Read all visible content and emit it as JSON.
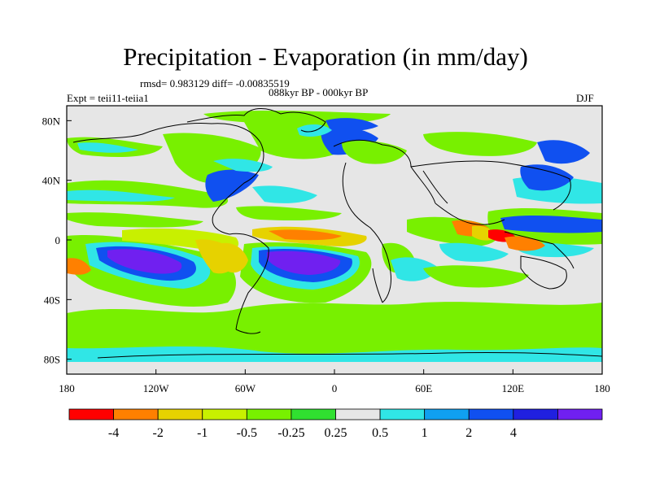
{
  "title": "Precipitation - Evaporation (in mm/day)",
  "stats": "rmsd= 0.983129 diff= -0.00835519",
  "experiment": "Expt = teii11-teiia1",
  "period": "088kyr BP - 000kyr BP",
  "season": "DJF",
  "axes": {
    "x_ticks": [
      "180",
      "120W",
      "60W",
      "0",
      "60E",
      "120E",
      "180"
    ],
    "x_values": [
      -180,
      -120,
      -60,
      0,
      60,
      120,
      180
    ],
    "y_ticks": [
      "80N",
      "40N",
      "0",
      "40S",
      "80S"
    ],
    "y_values": [
      80,
      40,
      0,
      -40,
      -80
    ],
    "xlim": [
      -180,
      180
    ],
    "ylim": [
      -90,
      90
    ]
  },
  "colorbar": {
    "colors": [
      "#ff0000",
      "#ff8000",
      "#e6d200",
      "#c8f000",
      "#78f000",
      "#30e030",
      "#e6e6e6",
      "#30e6e6",
      "#10a0f0",
      "#1050f0",
      "#2020e0",
      "#7020f0"
    ],
    "labels": [
      "-4",
      "-2",
      "-1",
      "-0.5",
      "-0.25",
      "0.25",
      "0.5",
      "1",
      "2",
      "4"
    ]
  },
  "colors": {
    "land": "#e6e6e6",
    "coast": "#000000"
  }
}
